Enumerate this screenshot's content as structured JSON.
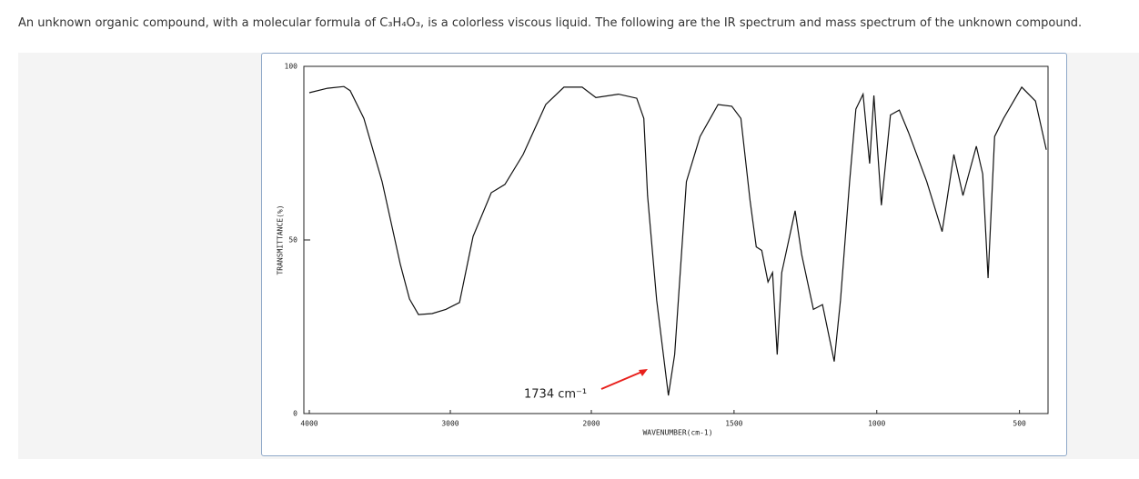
{
  "question": "An unknown organic compound, with a molecular formula of C₃H₄O₃, is a colorless viscous liquid. The following are the IR spectrum and mass spectrum of the unknown compound.",
  "chart_data": {
    "type": "line",
    "x_label": "WAVENUMBER(cm-1)",
    "y_label": "TRANSMITTANCE(%)",
    "annotation": "1734 cm⁻¹",
    "xlim": [
      4000,
      400
    ],
    "x_scale_change": 2000,
    "ylim": [
      0,
      100
    ],
    "xticks": [
      4000,
      3000,
      2000,
      1500,
      1000,
      500
    ],
    "yticks": [
      100,
      50,
      0
    ],
    "x": [
      4000,
      3871,
      3755,
      3710,
      3613,
      3484,
      3355,
      3290,
      3226,
      3129,
      3032,
      2935,
      2839,
      2710,
      2613,
      2484,
      2323,
      2194,
      2065,
      1984,
      1905,
      1841,
      1816,
      1803,
      1771,
      1730,
      1708,
      1667,
      1619,
      1556,
      1508,
      1476,
      1444,
      1422,
      1403,
      1381,
      1365,
      1349,
      1333,
      1286,
      1263,
      1222,
      1190,
      1149,
      1127,
      1095,
      1073,
      1048,
      1025,
      1010,
      984,
      952,
      921,
      889,
      825,
      771,
      730,
      698,
      651,
      629,
      610,
      587,
      556,
      492,
      444,
      406
    ],
    "series": [
      {
        "color": "#111111",
        "values": [
          92.4,
          93.7,
          94.2,
          93,
          85,
          66.8,
          43,
          33,
          28.5,
          28.8,
          30,
          32,
          51,
          63.6,
          66,
          74.6,
          89,
          94,
          94,
          91,
          92,
          90.8,
          85,
          62.8,
          32.7,
          5.2,
          17,
          66.8,
          79.8,
          89,
          88.5,
          85,
          61.5,
          48,
          47,
          37.9,
          40.6,
          17,
          40.6,
          58.4,
          45.8,
          30,
          31.4,
          15,
          32.7,
          66.8,
          87.7,
          92,
          72,
          91.6,
          60,
          86,
          87.4,
          81,
          66.8,
          52.4,
          74.6,
          62.8,
          77,
          69,
          39,
          79.8,
          85,
          94,
          90,
          76
        ]
      }
    ]
  }
}
